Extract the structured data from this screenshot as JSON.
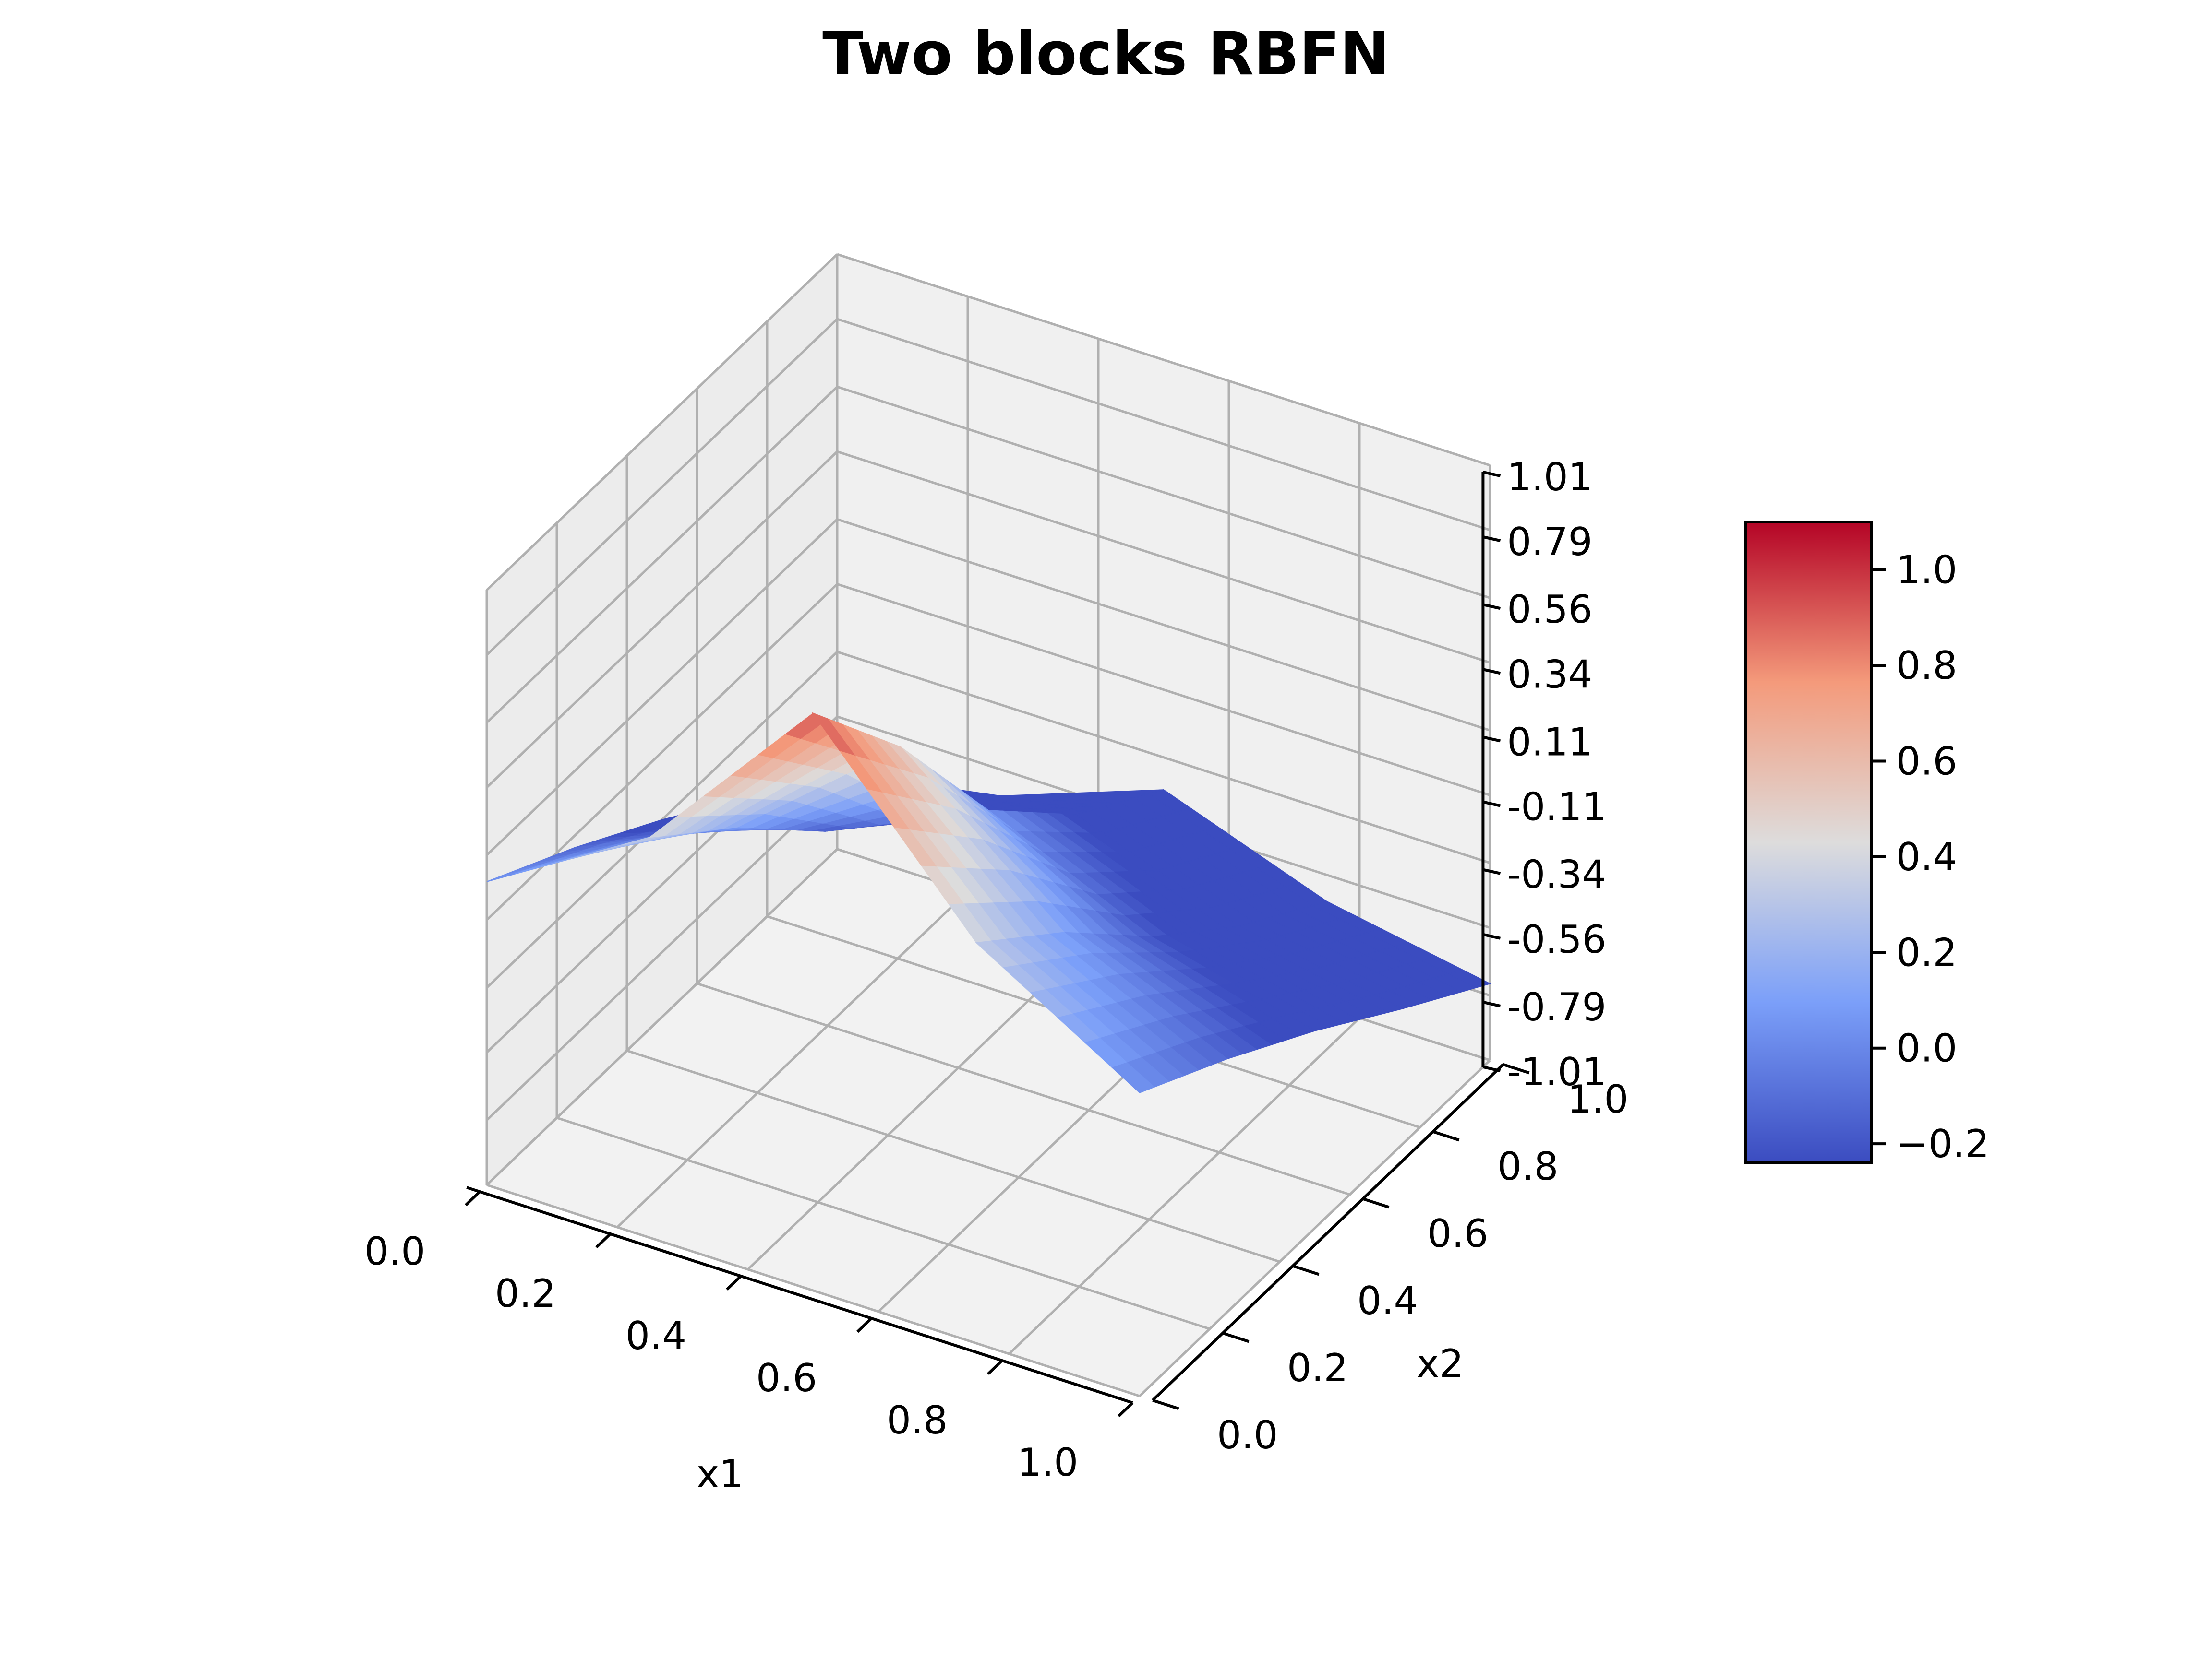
{
  "chart_data": {
    "type": "surface",
    "title": "Two blocks RBFN",
    "xlabel": "x1",
    "ylabel": "x2",
    "zlabel": "",
    "x_ticks": [
      "0.0",
      "0.2",
      "0.4",
      "0.6",
      "0.8",
      "1.0"
    ],
    "y_ticks": [
      "0.0",
      "0.2",
      "0.4",
      "0.6",
      "0.8",
      "1.0"
    ],
    "z_ticks": [
      "-1.01",
      "-0.79",
      "-0.56",
      "-0.34",
      "-0.11",
      "0.11",
      "0.34",
      "0.56",
      "0.79",
      "1.01"
    ],
    "xlim": [
      0,
      1
    ],
    "ylim": [
      0,
      1
    ],
    "zlim": [
      -1.01,
      1.01
    ],
    "grid": true,
    "colormap": "coolwarm",
    "surface_samples": {
      "x": [
        0.0,
        0.25,
        0.5,
        0.75,
        1.0
      ],
      "y": [
        0.0,
        0.25,
        0.5,
        0.75,
        1.0
      ],
      "z": [
        [
          0.02,
          -0.15,
          -0.34,
          -0.55,
          -0.75
        ],
        [
          0.35,
          0.1,
          -0.2,
          -0.45,
          -0.65
        ],
        [
          0.95,
          0.55,
          0.05,
          -0.25,
          -0.45
        ],
        [
          0.35,
          0.1,
          -0.2,
          -0.45,
          -0.65
        ],
        [
          0.02,
          -0.15,
          -0.34,
          -0.55,
          -0.75
        ]
      ]
    },
    "colorbar": {
      "ticks": [
        "−0.2",
        "0.0",
        "0.2",
        "0.4",
        "0.6",
        "0.8",
        "1.0"
      ],
      "tick_values": [
        -0.2,
        0.0,
        0.2,
        0.4,
        0.6,
        0.8,
        1.0
      ],
      "range": [
        -0.24,
        1.1
      ]
    }
  }
}
